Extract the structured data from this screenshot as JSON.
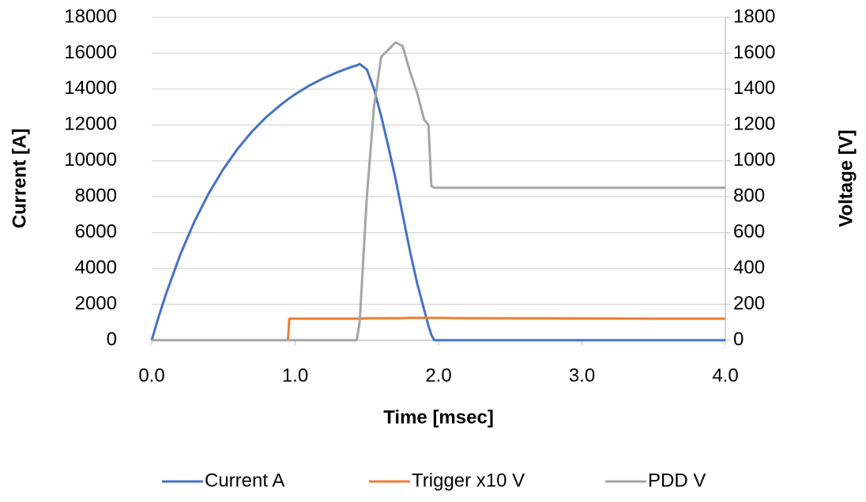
{
  "chart_data": {
    "type": "line",
    "x_label": "Time [msec]",
    "y_label": "Current [A]",
    "y2_label": "Voltage [V]",
    "x": [
      0,
      0.05,
      0.1,
      0.2,
      0.3,
      0.4,
      0.5,
      0.6,
      0.7,
      0.8,
      0.9,
      0.95,
      0.96,
      1.0,
      1.1,
      1.2,
      1.3,
      1.4,
      1.43,
      1.45,
      1.5,
      1.55,
      1.6,
      1.65,
      1.7,
      1.75,
      1.8,
      1.85,
      1.9,
      1.93,
      1.95,
      1.97,
      2.0,
      2.2,
      2.5,
      3.0,
      3.5,
      4.0
    ],
    "series": [
      {
        "name": "Current A",
        "color": "#4472c4",
        "axis": "y",
        "values": [
          0,
          1350,
          2590,
          4790,
          6650,
          8220,
          9550,
          10680,
          11640,
          12450,
          13130,
          13430,
          13490,
          13710,
          14200,
          14610,
          14960,
          15260,
          15320,
          15400,
          15100,
          14000,
          12500,
          10800,
          9000,
          7000,
          5000,
          3200,
          1700,
          800,
          300,
          0,
          0,
          0,
          0,
          0,
          0,
          0
        ]
      },
      {
        "name": "Trigger x10 V",
        "color": "#ed7d31",
        "axis": "y2",
        "values": [
          0,
          0,
          0,
          0,
          0,
          0,
          0,
          0,
          0,
          0,
          0,
          0,
          120,
          120,
          120,
          120,
          120,
          120,
          120,
          120,
          122,
          122,
          122,
          123,
          123,
          123,
          124,
          124,
          124,
          124,
          124,
          124,
          124,
          123,
          122,
          121,
          120,
          120
        ]
      },
      {
        "name": "PDD V",
        "color": "#a5a5a5",
        "axis": "y2",
        "values": [
          0,
          0,
          0,
          0,
          0,
          0,
          0,
          0,
          0,
          0,
          0,
          0,
          0,
          0,
          0,
          0,
          0,
          0,
          0,
          100,
          800,
          1300,
          1580,
          1620,
          1660,
          1640,
          1500,
          1380,
          1230,
          1200,
          860,
          850,
          850,
          850,
          850,
          850,
          850,
          850
        ]
      }
    ],
    "xlim": [
      0,
      4
    ],
    "xticks": [
      {
        "value": 0,
        "label": "0.0"
      },
      {
        "value": 1,
        "label": "1.0"
      },
      {
        "value": 2,
        "label": "2.0"
      },
      {
        "value": 3,
        "label": "3.0"
      },
      {
        "value": 4,
        "label": "4.0"
      }
    ],
    "ylim": [
      0,
      18000
    ],
    "yticks": [
      0,
      2000,
      4000,
      6000,
      8000,
      10000,
      12000,
      14000,
      16000,
      18000
    ],
    "y2lim": [
      0,
      1800
    ],
    "y2ticks": [
      0,
      200,
      400,
      600,
      800,
      1000,
      1200,
      1400,
      1600,
      1800
    ],
    "grid": true,
    "legend": "bottom"
  }
}
